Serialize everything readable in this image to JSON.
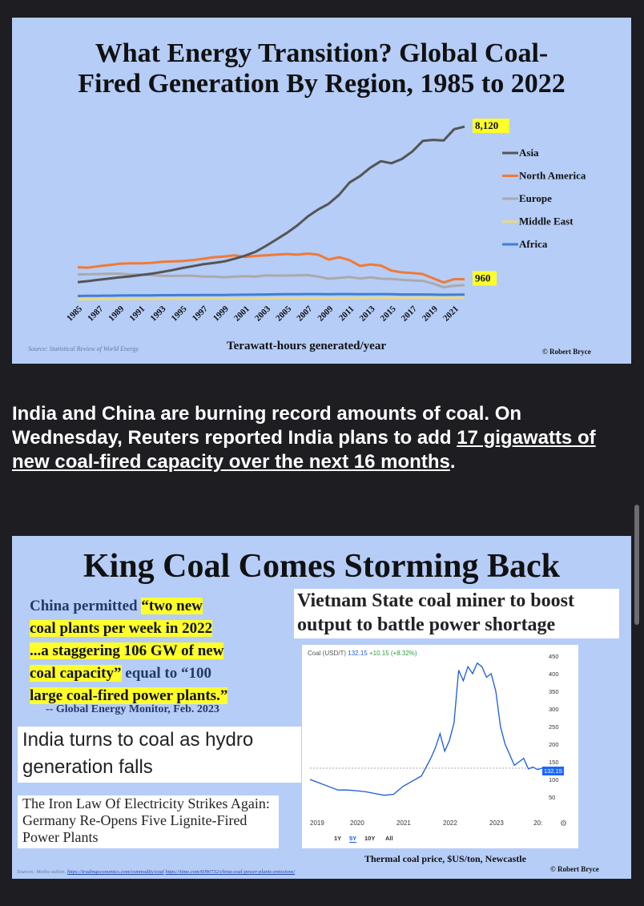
{
  "panel1": {
    "title_line1": "What Energy Transition? Global Coal-",
    "title_line2": "Fired Generation By Region, 1985 to 2022",
    "source": "Source: Statistical Review of World Energy",
    "x_caption": "Terawatt-hours generated/year",
    "credit": "© Robert Bryce"
  },
  "chart_data": [
    {
      "type": "line",
      "title": "What Energy Transition? Global Coal-Fired Generation By Region, 1985 to 2022",
      "xlabel": "Terawatt-hours generated/year",
      "x": [
        1985,
        1986,
        1987,
        1988,
        1989,
        1990,
        1991,
        1992,
        1993,
        1994,
        1995,
        1996,
        1997,
        1998,
        1999,
        2000,
        2001,
        2002,
        2003,
        2004,
        2005,
        2006,
        2007,
        2008,
        2009,
        2010,
        2011,
        2012,
        2013,
        2014,
        2015,
        2016,
        2017,
        2018,
        2019,
        2020,
        2021,
        2022
      ],
      "x_tick_labels": [
        "1985",
        "1987",
        "1989",
        "1991",
        "1993",
        "1995",
        "1997",
        "1999",
        "2001",
        "2003",
        "2005",
        "2007",
        "2009",
        "2011",
        "2013",
        "2015",
        "2017",
        "2019",
        "2021"
      ],
      "ylim": [
        0,
        8500
      ],
      "legend_position": "right",
      "series": [
        {
          "name": "Asia",
          "color": "#555555",
          "values": [
            820,
            870,
            930,
            990,
            1040,
            1090,
            1150,
            1210,
            1290,
            1380,
            1480,
            1570,
            1660,
            1720,
            1790,
            1920,
            2060,
            2240,
            2520,
            2820,
            3130,
            3480,
            3900,
            4230,
            4500,
            4920,
            5500,
            5800,
            6200,
            6500,
            6400,
            6600,
            6950,
            7450,
            7500,
            7470,
            8000,
            8120
          ]
        },
        {
          "name": "North America",
          "color": "#f07a35",
          "values": [
            1520,
            1500,
            1570,
            1620,
            1680,
            1700,
            1700,
            1720,
            1770,
            1790,
            1810,
            1850,
            1920,
            1990,
            2020,
            2080,
            2000,
            2050,
            2080,
            2110,
            2140,
            2110,
            2160,
            2110,
            1880,
            1990,
            1850,
            1580,
            1650,
            1600,
            1360,
            1280,
            1250,
            1200,
            1000,
            800,
            960,
            960
          ]
        },
        {
          "name": "Europe",
          "color": "#aaaaaa",
          "values": [
            1180,
            1190,
            1200,
            1210,
            1220,
            1180,
            1170,
            1150,
            1120,
            1110,
            1120,
            1120,
            1080,
            1080,
            1050,
            1080,
            1100,
            1080,
            1140,
            1130,
            1130,
            1140,
            1150,
            1080,
            980,
            1020,
            1060,
            990,
            1040,
            980,
            970,
            930,
            900,
            880,
            750,
            580,
            650,
            680
          ]
        },
        {
          "name": "Middle East",
          "color": "#e8d98a",
          "values": [
            20,
            20,
            22,
            24,
            26,
            28,
            30,
            32,
            34,
            36,
            38,
            40,
            42,
            44,
            46,
            48,
            50,
            52,
            54,
            56,
            58,
            60,
            62,
            64,
            66,
            68,
            70,
            72,
            74,
            76,
            78,
            80,
            82,
            84,
            86,
            88,
            90,
            92
          ]
        },
        {
          "name": "Africa",
          "color": "#3f7fd6",
          "values": [
            170,
            175,
            180,
            185,
            190,
            195,
            200,
            200,
            205,
            205,
            210,
            210,
            215,
            220,
            220,
            225,
            230,
            235,
            240,
            250,
            255,
            255,
            260,
            260,
            255,
            260,
            260,
            255,
            255,
            260,
            255,
            240,
            240,
            240,
            235,
            225,
            230,
            235
          ]
        }
      ],
      "data_labels": {
        "asia_end": "8,120",
        "north_america_end": "960"
      }
    },
    {
      "type": "line",
      "title": "Coal (USD/T)",
      "caption": "Thermal coal price, $US/ton, Newcastle",
      "x_tick_labels": [
        "2019",
        "2020",
        "2021",
        "2022",
        "2023",
        "20:"
      ],
      "y_tick_labels": [
        "450",
        "400",
        "350",
        "300",
        "250",
        "200",
        "150",
        "100",
        "50"
      ],
      "ylim": [
        0,
        450
      ],
      "current_value": "132.15",
      "series": [
        {
          "name": "Coal (USD/T)",
          "color": "#1a5bd8",
          "x": [
            2019.0,
            2019.2,
            2019.4,
            2019.6,
            2019.8,
            2020.0,
            2020.2,
            2020.4,
            2020.6,
            2020.8,
            2021.0,
            2021.2,
            2021.4,
            2021.6,
            2021.7,
            2021.8,
            2021.9,
            2022.0,
            2022.1,
            2022.2,
            2022.3,
            2022.4,
            2022.5,
            2022.6,
            2022.7,
            2022.8,
            2022.9,
            2023.0,
            2023.1,
            2023.2,
            2023.3,
            2023.4,
            2023.5,
            2023.6,
            2023.7,
            2023.8,
            2023.9,
            2024.0
          ],
          "values": [
            100,
            90,
            80,
            70,
            70,
            68,
            65,
            60,
            55,
            58,
            80,
            95,
            110,
            160,
            190,
            230,
            180,
            210,
            260,
            410,
            380,
            420,
            400,
            430,
            420,
            390,
            400,
            350,
            250,
            200,
            170,
            140,
            150,
            160,
            130,
            135,
            128,
            132
          ]
        }
      ]
    }
  ],
  "article": {
    "text_before": "India and China are burning record amounts of coal. On Wednesday, Reuters reported India plans to add ",
    "link_text": "17 gigawatts of new coal-fired capacity over the next 16 months",
    "text_after": "."
  },
  "panel2": {
    "title": "King Coal Comes Storming Back",
    "china_quote": {
      "part1": "China permitted ",
      "highlight1": "“two new",
      "highlight2": "coal plants per week in 2022",
      "highlight3": "...a staggering 106 GW of new",
      "highlight4": "coal capacity”",
      "part2": " equal to “100",
      "highlight5": "large coal-fired power plants.”"
    },
    "china_attribution": "-- Global Energy Monitor, Feb. 2023",
    "vietnam_headline": "Vietnam State coal miner to boost output to battle power shortage",
    "india_headline": "India turns to coal as hydro generation falls",
    "germany_headline": "The Iron Law Of Electricity Strikes Again: Germany Re-Opens Five Lignite-Fired Power Plants",
    "coal_chart": {
      "label": "Coal (USD/T)",
      "price": "132.15",
      "change": "+10.15 (+8.32%)",
      "range_buttons": [
        "1Y",
        "5Y",
        "10Y",
        "All"
      ],
      "active_range": "5Y"
    },
    "coal_caption": "Thermal coal price, $US/ton, Newcastle",
    "sources_prefix": "Sources: Media outlets,",
    "source_link1": "https://tradingeconomics.com/commodity/coal",
    "source_link2": "https://time.com/6090732/china-coal-power-plants-emissions/",
    "credit": "© Robert Bryce"
  }
}
